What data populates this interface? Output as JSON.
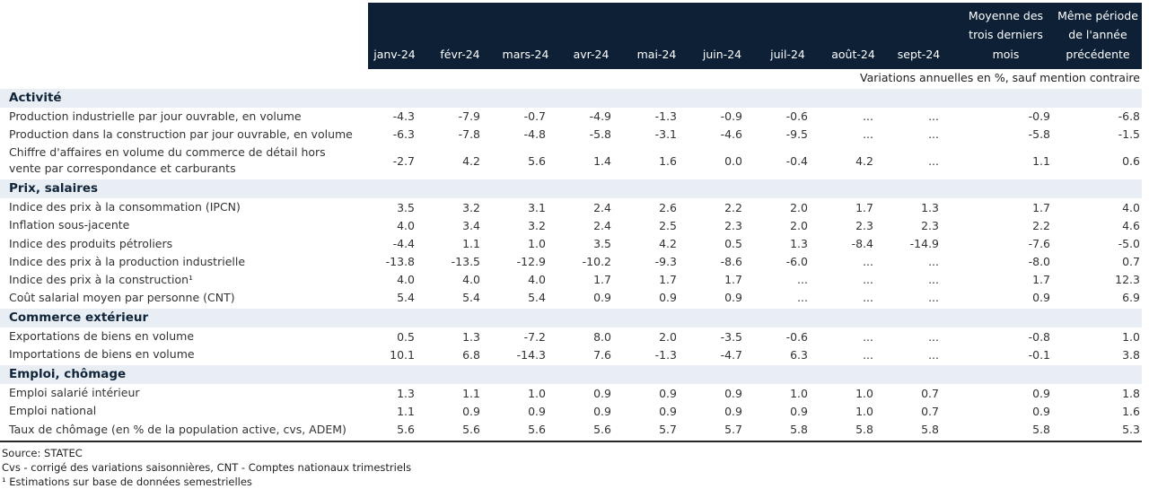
{
  "table": {
    "columns": [
      "janv-24",
      "févr-24",
      "mars-24",
      "avr-24",
      "mai-24",
      "juin-24",
      "juil-24",
      "août-24",
      "sept-24",
      "Moyenne des trois derniers mois",
      "Même période de l'année précédente"
    ],
    "unit_note": "Variations annuelles en %, sauf mention contraire",
    "sections": [
      {
        "title": "Activité",
        "rows": [
          {
            "label": "Production industrielle par jour ouvrable, en volume",
            "values": [
              "-4.3",
              "-7.9",
              "-0.7",
              "-4.9",
              "-1.3",
              "-0.9",
              "-0.6",
              "...",
              "...",
              "-0.9",
              "-6.8"
            ]
          },
          {
            "label": "Production dans la construction par jour ouvrable, en volume",
            "values": [
              "-6.3",
              "-7.8",
              "-4.8",
              "-5.8",
              "-3.1",
              "-4.6",
              "-9.5",
              "...",
              "...",
              "-5.8",
              "-1.5"
            ]
          },
          {
            "label": "Chiffre d'affaires en volume du commerce de détail hors vente par correspondance et carburants",
            "values": [
              "-2.7",
              "4.2",
              "5.6",
              "1.4",
              "1.6",
              "0.0",
              "-0.4",
              "4.2",
              "...",
              "1.1",
              "0.6"
            ]
          }
        ]
      },
      {
        "title": "Prix, salaires",
        "rows": [
          {
            "label": "Indice des prix à la consommation (IPCN)",
            "values": [
              "3.5",
              "3.2",
              "3.1",
              "2.4",
              "2.6",
              "2.2",
              "2.0",
              "1.7",
              "1.3",
              "1.7",
              "4.0"
            ]
          },
          {
            "label": "Inflation sous-jacente",
            "values": [
              "4.0",
              "3.4",
              "3.2",
              "2.4",
              "2.5",
              "2.3",
              "2.0",
              "2.3",
              "2.3",
              "2.2",
              "4.6"
            ]
          },
          {
            "label": "Indice des produits pétroliers",
            "values": [
              "-4.4",
              "1.1",
              "1.0",
              "3.5",
              "4.2",
              "0.5",
              "1.3",
              "-8.4",
              "-14.9",
              "-7.6",
              "-5.0"
            ]
          },
          {
            "label": "Indice des prix à la production industrielle",
            "values": [
              "-13.8",
              "-13.5",
              "-12.9",
              "-10.2",
              "-9.3",
              "-8.6",
              "-6.0",
              "...",
              "...",
              "-8.0",
              "0.7"
            ]
          },
          {
            "label": "Indice des prix à la construction¹",
            "values": [
              "4.0",
              "4.0",
              "4.0",
              "1.7",
              "1.7",
              "1.7",
              "...",
              "...",
              "...",
              "1.7",
              "12.3"
            ]
          },
          {
            "label": "Coût salarial moyen par personne (CNT)",
            "values": [
              "5.4",
              "5.4",
              "5.4",
              "0.9",
              "0.9",
              "0.9",
              "...",
              "...",
              "...",
              "0.9",
              "6.9"
            ]
          }
        ]
      },
      {
        "title": "Commerce extérieur",
        "rows": [
          {
            "label": "Exportations de biens en volume",
            "values": [
              "0.5",
              "1.3",
              "-7.2",
              "8.0",
              "2.0",
              "-3.5",
              "-0.6",
              "...",
              "...",
              "-0.8",
              "1.0"
            ]
          },
          {
            "label": "Importations de biens en volume",
            "values": [
              "10.1",
              "6.8",
              "-14.3",
              "7.6",
              "-1.3",
              "-4.7",
              "6.3",
              "...",
              "...",
              "-0.1",
              "3.8"
            ]
          }
        ]
      },
      {
        "title": "Emploi, chômage",
        "rows": [
          {
            "label": "Emploi salarié intérieur",
            "values": [
              "1.3",
              "1.1",
              "1.0",
              "0.9",
              "0.9",
              "0.9",
              "1.0",
              "1.0",
              "0.7",
              "0.9",
              "1.8"
            ]
          },
          {
            "label": "Emploi national",
            "values": [
              "1.1",
              "0.9",
              "0.9",
              "0.9",
              "0.9",
              "0.9",
              "0.9",
              "1.0",
              "0.7",
              "0.9",
              "1.6"
            ]
          },
          {
            "label": "Taux de chômage (en % de la population active, cvs, ADEM)",
            "values": [
              "5.6",
              "5.6",
              "5.6",
              "5.6",
              "5.7",
              "5.7",
              "5.8",
              "5.8",
              "5.8",
              "5.8",
              "5.3"
            ]
          }
        ]
      }
    ]
  },
  "footer": {
    "source": "Source: STATEC",
    "note1": "Cvs - corrigé des variations saisonnières, CNT - Comptes nationaux trimestriels",
    "note2": "¹ Estimations sur base de données semestrielles"
  },
  "colors": {
    "header_bg": "#0d2036",
    "section_band_bg": "#e8eef4",
    "divider": "#262626"
  }
}
